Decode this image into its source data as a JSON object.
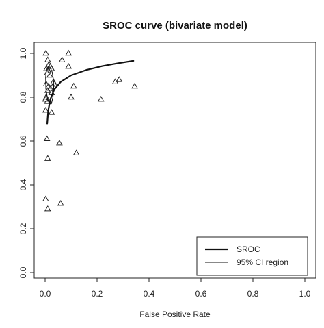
{
  "chart_data": {
    "type": "scatter",
    "title": "SROC curve (bivariate model)",
    "xlabel": "False Positive Rate",
    "ylabel": "",
    "xlim": [
      0,
      1
    ],
    "ylim": [
      0,
      1
    ],
    "x_ticks": [
      "0.0",
      "0.2",
      "0.4",
      "0.6",
      "0.8",
      "1.0"
    ],
    "y_ticks": [
      "0.0",
      "0.2",
      "0.4",
      "0.6",
      "0.8",
      "1.0"
    ],
    "grid": false,
    "legend_position": "bottom-right",
    "series": [
      {
        "kind": "points",
        "marker": "triangle",
        "points": [
          {
            "x": 0.003,
            "y": 1.0
          },
          {
            "x": 0.01,
            "y": 0.97
          },
          {
            "x": 0.015,
            "y": 0.95
          },
          {
            "x": 0.02,
            "y": 0.94
          },
          {
            "x": 0.025,
            "y": 0.93
          },
          {
            "x": 0.005,
            "y": 0.93
          },
          {
            "x": 0.012,
            "y": 0.92
          },
          {
            "x": 0.008,
            "y": 0.91
          },
          {
            "x": 0.018,
            "y": 0.9
          },
          {
            "x": 0.004,
            "y": 0.86
          },
          {
            "x": 0.013,
            "y": 0.85
          },
          {
            "x": 0.02,
            "y": 0.84
          },
          {
            "x": 0.03,
            "y": 0.85
          },
          {
            "x": 0.01,
            "y": 0.83
          },
          {
            "x": 0.025,
            "y": 0.82
          },
          {
            "x": 0.004,
            "y": 0.8
          },
          {
            "x": 0.001,
            "y": 0.79
          },
          {
            "x": 0.008,
            "y": 0.78
          },
          {
            "x": 0.002,
            "y": 0.74
          },
          {
            "x": 0.025,
            "y": 0.73
          },
          {
            "x": 0.032,
            "y": 0.87
          },
          {
            "x": 0.035,
            "y": 0.86
          },
          {
            "x": 0.09,
            "y": 1.0
          },
          {
            "x": 0.065,
            "y": 0.97
          },
          {
            "x": 0.09,
            "y": 0.94
          },
          {
            "x": 0.11,
            "y": 0.85
          },
          {
            "x": 0.1,
            "y": 0.8
          },
          {
            "x": 0.215,
            "y": 0.79
          },
          {
            "x": 0.27,
            "y": 0.87
          },
          {
            "x": 0.285,
            "y": 0.88
          },
          {
            "x": 0.345,
            "y": 0.85
          },
          {
            "x": 0.007,
            "y": 0.61
          },
          {
            "x": 0.055,
            "y": 0.59
          },
          {
            "x": 0.12,
            "y": 0.545
          },
          {
            "x": 0.01,
            "y": 0.52
          },
          {
            "x": 0.002,
            "y": 0.335
          },
          {
            "x": 0.06,
            "y": 0.315
          },
          {
            "x": 0.01,
            "y": 0.29
          }
        ]
      },
      {
        "kind": "line",
        "name": "SROC",
        "line_width": "thick",
        "points": [
          {
            "x": 0.008,
            "y": 0.68
          },
          {
            "x": 0.012,
            "y": 0.74
          },
          {
            "x": 0.02,
            "y": 0.79
          },
          {
            "x": 0.035,
            "y": 0.835
          },
          {
            "x": 0.06,
            "y": 0.87
          },
          {
            "x": 0.1,
            "y": 0.9
          },
          {
            "x": 0.16,
            "y": 0.925
          },
          {
            "x": 0.22,
            "y": 0.942
          },
          {
            "x": 0.28,
            "y": 0.955
          },
          {
            "x": 0.34,
            "y": 0.966
          }
        ]
      },
      {
        "kind": "line",
        "name": "95% CI region",
        "line_width": "thin",
        "closed": true,
        "points": [
          {
            "x": 0.013,
            "y": 0.94
          },
          {
            "x": 0.02,
            "y": 0.935
          },
          {
            "x": 0.027,
            "y": 0.915
          },
          {
            "x": 0.032,
            "y": 0.88
          },
          {
            "x": 0.033,
            "y": 0.84
          },
          {
            "x": 0.03,
            "y": 0.8
          },
          {
            "x": 0.024,
            "y": 0.77
          },
          {
            "x": 0.016,
            "y": 0.77
          },
          {
            "x": 0.008,
            "y": 0.8
          },
          {
            "x": 0.003,
            "y": 0.84
          },
          {
            "x": 0.002,
            "y": 0.89
          },
          {
            "x": 0.005,
            "y": 0.925
          }
        ]
      }
    ],
    "legend": [
      {
        "label": "SROC",
        "line_width": "thick"
      },
      {
        "label": "95% CI region",
        "line_width": "thin"
      }
    ]
  }
}
